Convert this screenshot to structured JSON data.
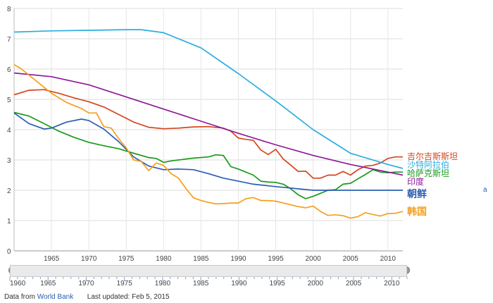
{
  "chart_data": {
    "type": "line",
    "title": "",
    "xlabel": "",
    "ylabel": "",
    "xlim": [
      1960,
      2012
    ],
    "ylim": [
      0,
      8
    ],
    "x_ticks": [
      "1965",
      "1970",
      "1975",
      "1980",
      "1985",
      "1990",
      "1995",
      "2000",
      "2005",
      "2010"
    ],
    "y_ticks": [
      "0",
      "1",
      "2",
      "3",
      "4",
      "5",
      "6",
      "7",
      "8"
    ],
    "grid": true,
    "legend": "right, labels at line ends",
    "series": [
      {
        "name": "吉尔吉斯斯坦",
        "color": "#d4471f",
        "x": [
          1960,
          1962,
          1964,
          1966,
          1968,
          1970,
          1972,
          1974,
          1976,
          1978,
          1980,
          1982,
          1984,
          1986,
          1988,
          1989,
          1990,
          1991,
          1992,
          1993,
          1994,
          1995,
          1996,
          1997,
          1998,
          1999,
          2000,
          2001,
          2002,
          2003,
          2004,
          2005,
          2006,
          2007,
          2008,
          2009,
          2010,
          2011,
          2012
        ],
        "y": [
          5.15,
          5.3,
          5.32,
          5.2,
          5.05,
          4.92,
          4.75,
          4.5,
          4.25,
          4.08,
          4.03,
          4.05,
          4.09,
          4.1,
          4.05,
          3.95,
          3.72,
          3.68,
          3.65,
          3.33,
          3.18,
          3.35,
          3.03,
          2.83,
          2.62,
          2.63,
          2.4,
          2.4,
          2.5,
          2.5,
          2.62,
          2.5,
          2.68,
          2.8,
          2.82,
          2.9,
          3.05,
          3.1,
          3.1
        ]
      },
      {
        "name": "沙特阿拉伯",
        "color": "#2aaee0",
        "x": [
          1960,
          1965,
          1970,
          1975,
          1977,
          1980,
          1982,
          1985,
          1990,
          1995,
          2000,
          2005,
          2010,
          2012
        ],
        "y": [
          7.22,
          7.26,
          7.28,
          7.3,
          7.3,
          7.2,
          7.0,
          6.7,
          5.85,
          4.95,
          4.0,
          3.22,
          2.85,
          2.72
        ]
      },
      {
        "name": "哈萨克斯坦",
        "color": "#1b9a1b",
        "x": [
          1960,
          1962,
          1964,
          1966,
          1968,
          1970,
          1972,
          1974,
          1976,
          1978,
          1979,
          1980,
          1981,
          1982,
          1984,
          1986,
          1987,
          1988,
          1989,
          1990,
          1992,
          1993,
          1994,
          1995,
          1996,
          1997,
          1998,
          1999,
          2000,
          2001,
          2002,
          2003,
          2004,
          2005,
          2006,
          2007,
          2008,
          2009,
          2010,
          2011,
          2012
        ],
        "y": [
          4.57,
          4.45,
          4.2,
          3.95,
          3.75,
          3.58,
          3.47,
          3.37,
          3.22,
          3.08,
          3.05,
          2.92,
          2.97,
          3.0,
          3.06,
          3.1,
          3.17,
          3.15,
          2.78,
          2.7,
          2.5,
          2.3,
          2.27,
          2.26,
          2.2,
          2.05,
          1.85,
          1.72,
          1.8,
          1.9,
          2.0,
          2.02,
          2.2,
          2.23,
          2.38,
          2.52,
          2.68,
          2.6,
          2.58,
          2.6,
          2.6
        ]
      },
      {
        "name": "印度",
        "color": "#8e1a9a",
        "x": [
          1960,
          1965,
          1970,
          1975,
          1980,
          1985,
          1990,
          1995,
          2000,
          2005,
          2010,
          2012
        ],
        "y": [
          5.87,
          5.75,
          5.48,
          5.08,
          4.68,
          4.28,
          3.88,
          3.5,
          3.15,
          2.85,
          2.6,
          2.5
        ]
      },
      {
        "name": "朝鲜",
        "color": "#2b5eb3",
        "x": [
          1960,
          1962,
          1964,
          1965,
          1967,
          1969,
          1970,
          1972,
          1974,
          1976,
          1978,
          1980,
          1982,
          1984,
          1986,
          1988,
          1990,
          1992,
          1995,
          2000,
          2005,
          2010,
          2012
        ],
        "y": [
          4.55,
          4.2,
          4.02,
          4.05,
          4.25,
          4.35,
          4.3,
          4.02,
          3.6,
          3.1,
          2.8,
          2.68,
          2.7,
          2.68,
          2.55,
          2.4,
          2.3,
          2.2,
          2.12,
          2.0,
          2.0,
          2.0,
          2.0
        ]
      },
      {
        "name": "韩国",
        "color": "#f3a01c",
        "x": [
          1960,
          1961,
          1963,
          1965,
          1967,
          1969,
          1970,
          1971,
          1972,
          1973,
          1974,
          1975,
          1976,
          1977,
          1978,
          1979,
          1980,
          1981,
          1982,
          1983,
          1984,
          1985,
          1986,
          1987,
          1988,
          1989,
          1990,
          1991,
          1992,
          1993,
          1994,
          1995,
          1996,
          1997,
          1998,
          1999,
          2000,
          2001,
          2002,
          2003,
          2004,
          2005,
          2006,
          2007,
          2008,
          2009,
          2010,
          2011,
          2012
        ],
        "y": [
          6.15,
          6.0,
          5.6,
          5.2,
          4.9,
          4.7,
          4.55,
          4.55,
          4.1,
          4.05,
          3.7,
          3.4,
          3.0,
          2.95,
          2.65,
          2.9,
          2.82,
          2.55,
          2.4,
          2.05,
          1.75,
          1.66,
          1.6,
          1.55,
          1.56,
          1.58,
          1.58,
          1.72,
          1.76,
          1.66,
          1.66,
          1.64,
          1.58,
          1.52,
          1.46,
          1.42,
          1.48,
          1.3,
          1.17,
          1.19,
          1.16,
          1.08,
          1.13,
          1.26,
          1.2,
          1.15,
          1.23,
          1.24,
          1.3
        ]
      }
    ]
  },
  "timeline": {
    "start_label": "1960",
    "tick_labels": [
      "1965",
      "1970",
      "1975",
      "1980",
      "1985",
      "1990",
      "1995",
      "2000",
      "2005",
      "2010"
    ]
  },
  "footer": {
    "prefix": "Data from",
    "source": "World Bank",
    "updated": "Last updated: Feb 5, 2015"
  },
  "stray_mark": "a"
}
